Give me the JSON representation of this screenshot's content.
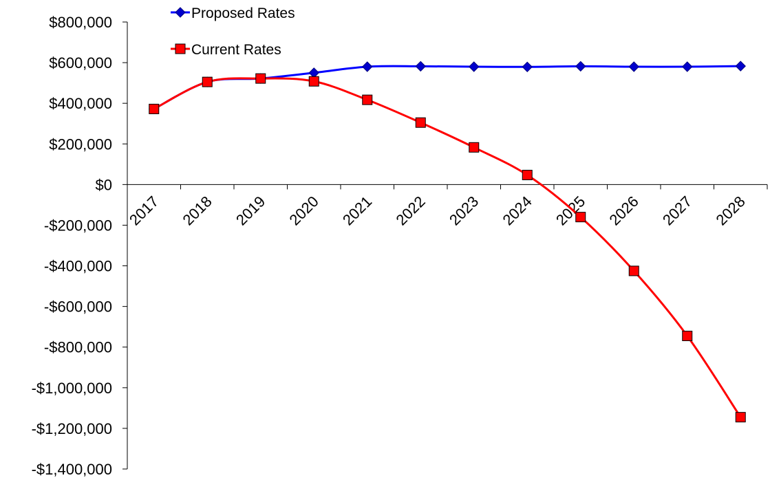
{
  "chart_data": {
    "type": "line",
    "title": "",
    "xlabel": "",
    "ylabel": "",
    "categories": [
      "2017",
      "2018",
      "2019",
      "2020",
      "2021",
      "2022",
      "2023",
      "2024",
      "2025",
      "2026",
      "2027",
      "2028"
    ],
    "ylim": [
      -1400000,
      800000
    ],
    "yticks": [
      800000,
      600000,
      400000,
      200000,
      0,
      -200000,
      -400000,
      -600000,
      -800000,
      -1000000,
      -1200000,
      -1400000
    ],
    "ytick_labels": [
      "$800,000",
      "$600,000",
      "$400,000",
      "$200,000",
      "$0",
      "-$200,000",
      "-$400,000",
      "-$600,000",
      "-$800,000",
      "-$1,000,000",
      "-$1,200,000",
      "-$1,400,000"
    ],
    "grid": false,
    "legend_position": "top-left",
    "smooth": true,
    "series": [
      {
        "name": "Proposed Rates",
        "color": "#0000ff",
        "marker": "diamond",
        "marker_color": "#0000cc",
        "values": [
          372000,
          505000,
          522000,
          550000,
          580000,
          582000,
          580000,
          579000,
          582000,
          580000,
          580000,
          583000
        ]
      },
      {
        "name": "Current Rates",
        "color": "#ff0000",
        "marker": "square",
        "marker_color": "#ff0000",
        "values": [
          372000,
          505000,
          522000,
          508000,
          417000,
          305000,
          183000,
          47000,
          -160000,
          -425000,
          -745000,
          -1145000
        ]
      }
    ]
  }
}
